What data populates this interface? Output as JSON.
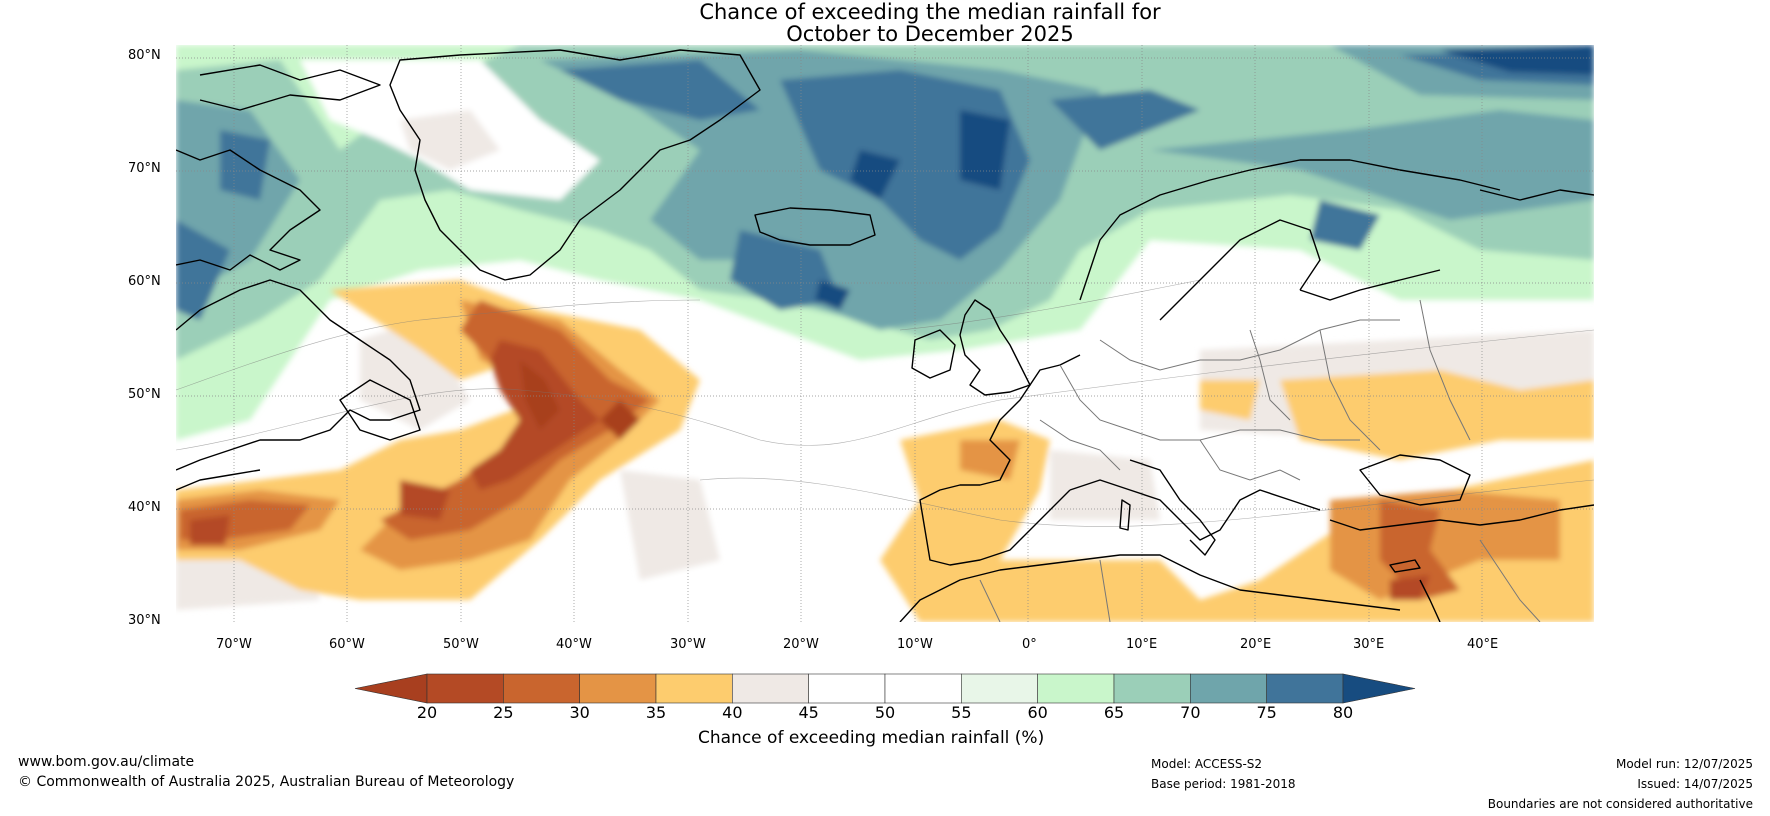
{
  "title": {
    "line1": "Chance of exceeding the median rainfall for",
    "line2": "October to December 2025"
  },
  "map": {
    "lon_range": [
      -75,
      50
    ],
    "lat_range": [
      30,
      81
    ],
    "lat_labels": [
      "80°N",
      "70°N",
      "60°N",
      "50°N",
      "40°N",
      "30°N"
    ],
    "lon_labels": [
      "70°W",
      "60°W",
      "50°W",
      "40°W",
      "30°W",
      "20°W",
      "10°W",
      "0°",
      "10°E",
      "20°E",
      "30°E",
      "40°E"
    ],
    "regions": [
      {
        "name": "north-atlantic-wet",
        "level": 75
      },
      {
        "name": "norwegian-sea-wet",
        "level": 80
      },
      {
        "name": "barents-wet",
        "level": 80
      },
      {
        "name": "labrador-wet",
        "level": 70
      },
      {
        "name": "mid-atlantic-dry",
        "level": 25
      },
      {
        "name": "iberia-dry",
        "level": 35
      },
      {
        "name": "east-med-dry",
        "level": 30
      },
      {
        "name": "eastern-europe-dry",
        "level": 40
      }
    ]
  },
  "colorbar": {
    "ticks": [
      "20",
      "25",
      "30",
      "35",
      "40",
      "45",
      "50",
      "55",
      "60",
      "65",
      "70",
      "75",
      "80"
    ],
    "colors": [
      "#a83f1f",
      "#b44a25",
      "#c9652e",
      "#e49445",
      "#fdcc6e",
      "#efe9e5",
      "#ffffff",
      "#ffffff",
      "#e8f6e8",
      "#c9f6cb",
      "#9bcfb8",
      "#6fa5ab",
      "#40749a",
      "#174c80"
    ],
    "label": "Chance of exceeding median rainfall (%)"
  },
  "footer": {
    "website": "www.bom.gov.au/climate",
    "copyright": "© Commonwealth of Australia 2025, Australian Bureau of Meteorology",
    "model": "Model: ACCESS-S2",
    "base_period": "Base period: 1981-2018",
    "model_run": "Model run: 12/07/2025",
    "issued": "Issued: 14/07/2025",
    "disclaimer": "Boundaries are not considered authoritative"
  }
}
